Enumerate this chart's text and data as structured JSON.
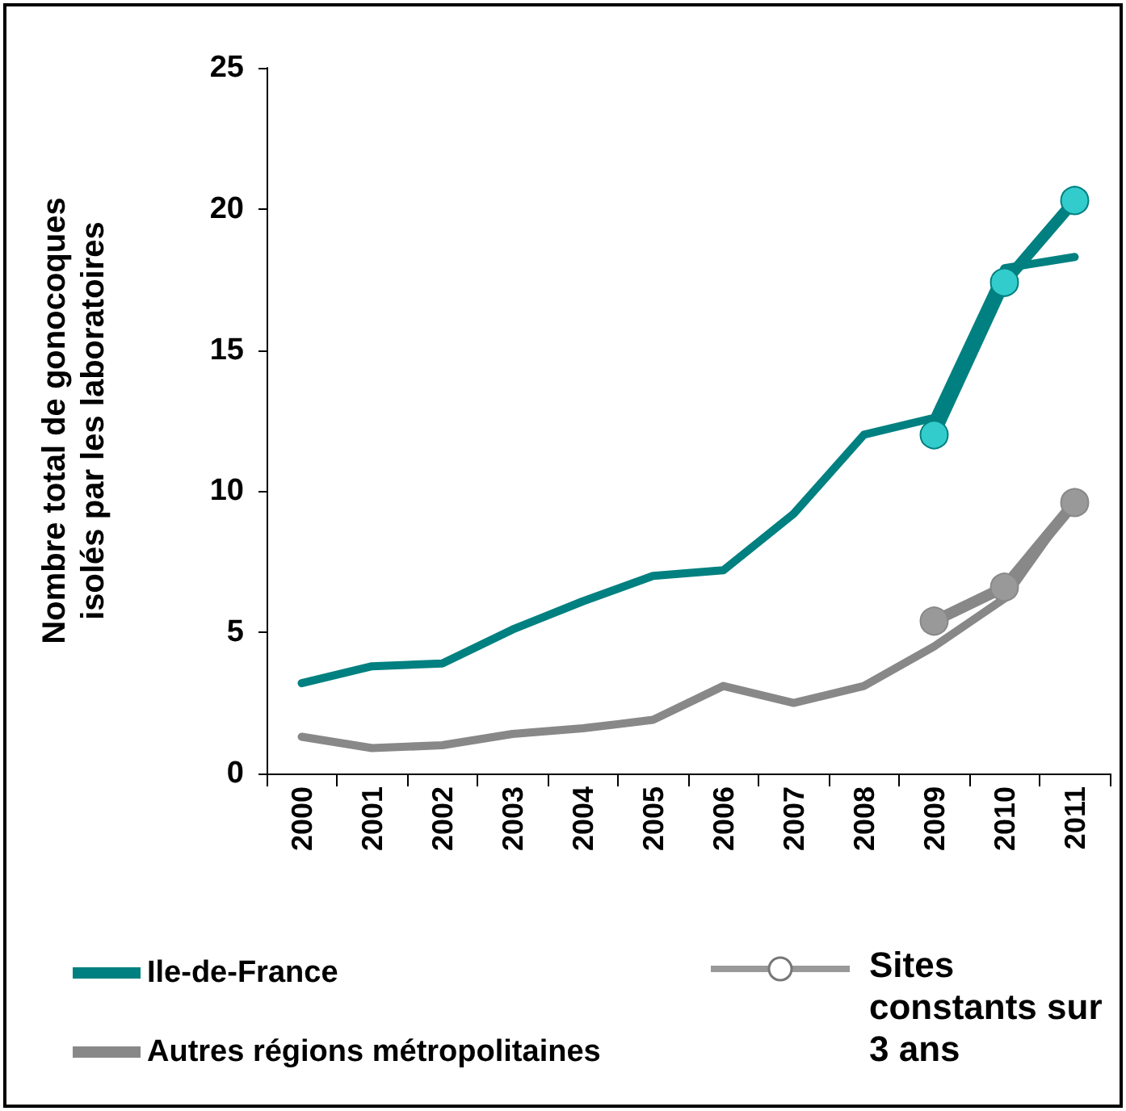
{
  "chart_data": {
    "type": "line",
    "ylabel": "Nombre total de gonocoques\nisolés par les laboratoires",
    "categories": [
      "2000",
      "2001",
      "2002",
      "2003",
      "2004",
      "2005",
      "2006",
      "2007",
      "2008",
      "2009",
      "2010",
      "2011"
    ],
    "ylim": [
      0,
      25
    ],
    "yticks": [
      0,
      5,
      10,
      15,
      20,
      25
    ],
    "grid": false,
    "legend": "bottom",
    "marker": "none",
    "line_style": "solid",
    "series": [
      {
        "name": "Ile-de-France",
        "color": "#008080",
        "values": [
          3.2,
          3.8,
          3.9,
          5.1,
          6.1,
          7.0,
          7.2,
          9.2,
          12.0,
          12.6,
          17.9,
          18.3
        ]
      },
      {
        "name": "Autres régions métropolitaines",
        "color": "#888888",
        "values": [
          1.3,
          0.9,
          1.0,
          1.4,
          1.6,
          1.9,
          3.1,
          2.5,
          3.1,
          4.5,
          6.2,
          9.7
        ]
      },
      {
        "color": "#008080",
        "marker": "circle",
        "values": [
          null,
          null,
          null,
          null,
          null,
          null,
          null,
          null,
          null,
          12.0,
          17.4,
          20.3
        ]
      },
      {
        "color": "#888888",
        "marker": "circle",
        "values": [
          null,
          null,
          null,
          null,
          null,
          null,
          null,
          null,
          null,
          5.4,
          6.6,
          9.6
        ]
      }
    ],
    "annotations": [
      "Sites constants sur 3 ans"
    ]
  }
}
